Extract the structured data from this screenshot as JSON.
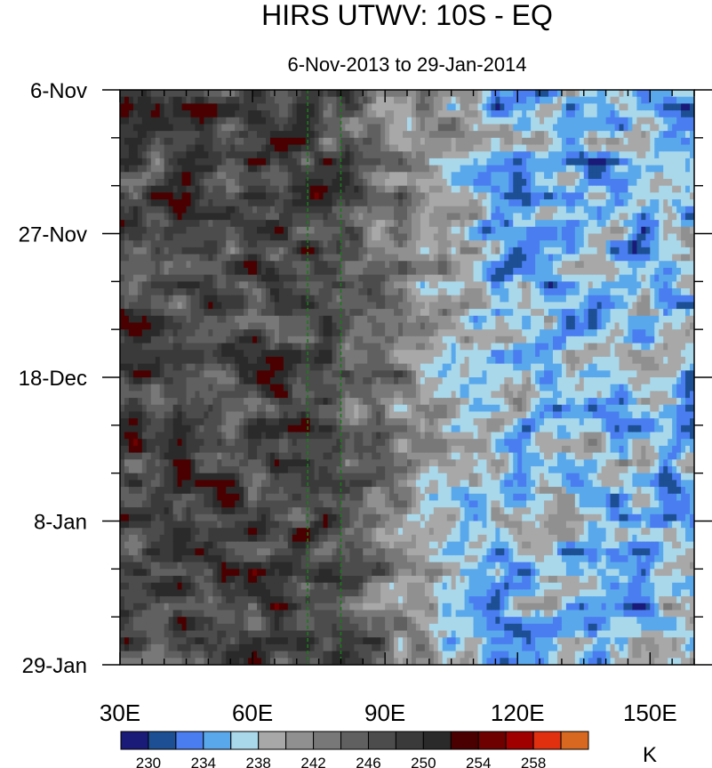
{
  "chart_data": {
    "type": "heatmap",
    "title": "HIRS UTWV: 10S - EQ",
    "subtitle": "6-Nov-2013 to 29-Jan-2014",
    "x_axis": {
      "label": "",
      "range": [
        30,
        160
      ],
      "ticks": [
        {
          "value": 30,
          "label": "30E"
        },
        {
          "value": 60,
          "label": "60E"
        },
        {
          "value": 90,
          "label": "90E"
        },
        {
          "value": 120,
          "label": "120E"
        },
        {
          "value": 150,
          "label": "150E"
        }
      ]
    },
    "y_axis": {
      "label": "",
      "range_days": [
        0,
        84
      ],
      "ticks": [
        {
          "day": 0,
          "label": "6-Nov"
        },
        {
          "day": 21,
          "label": "27-Nov"
        },
        {
          "day": 42,
          "label": "18-Dec"
        },
        {
          "day": 63,
          "label": "8-Jan"
        },
        {
          "day": 84,
          "label": "29-Jan"
        }
      ]
    },
    "reference_lines_lon": [
      72.5,
      80
    ],
    "colorbar": {
      "unit": "K",
      "levels": [
        228,
        230,
        232,
        234,
        236,
        238,
        240,
        242,
        244,
        246,
        248,
        250,
        252,
        254,
        256,
        258,
        260
      ],
      "labels": [
        {
          "value": 230,
          "label": "230"
        },
        {
          "value": 234,
          "label": "234"
        },
        {
          "value": 238,
          "label": "238"
        },
        {
          "value": 242,
          "label": "242"
        },
        {
          "value": 246,
          "label": "246"
        },
        {
          "value": 250,
          "label": "250"
        },
        {
          "value": 254,
          "label": "254"
        },
        {
          "value": 258,
          "label": "258"
        }
      ],
      "colors": [
        "#1a1a78",
        "#1c4f94",
        "#4a7ef0",
        "#5aa8ec",
        "#a9d8ea",
        "#a8a8a8",
        "#909090",
        "#787878",
        "#606060",
        "#4c4c4c",
        "#3a3a3a",
        "#2a2a2a",
        "#4a0000",
        "#6e0000",
        "#a00000",
        "#e03010",
        "#d86820"
      ]
    },
    "field_description_values": {
      "west_of_75E_typical_K": 248,
      "east_of_110E_typical_K": 236,
      "min_K": 229,
      "max_K": 255
    }
  }
}
